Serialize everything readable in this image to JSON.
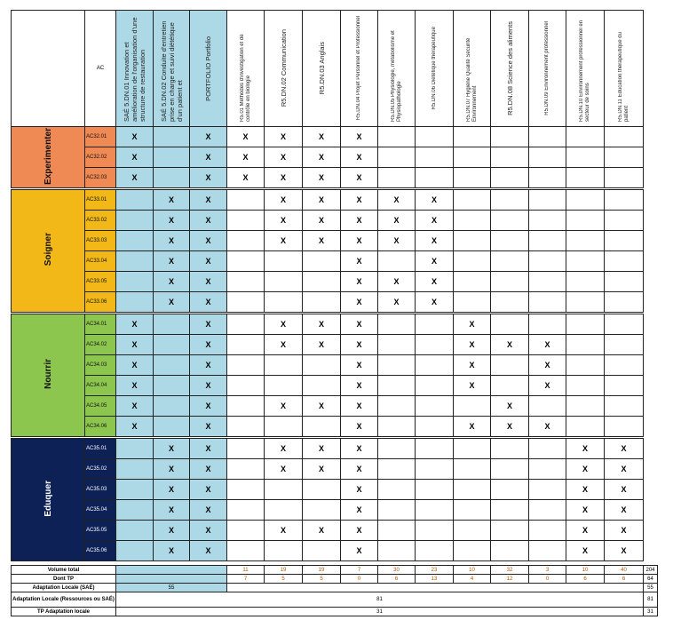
{
  "header": {
    "ac_label": "AC",
    "columns": [
      {
        "label": "SAÉ 5.DN.01 Innovation et amélioration de l'organisation d'une structure de restauration",
        "type": "sae"
      },
      {
        "label": "SAÉ 5.DN.02 Conduite d'entretien prise en charge et suivi diététique d'un patient et",
        "type": "sae"
      },
      {
        "label": "PORTFOLIO Portfolio",
        "type": "sae"
      },
      {
        "label": "R5.01 Méthodes d'investigation et de contrôle en biologie",
        "type": "res"
      },
      {
        "label": "R5.DN.02 Communication",
        "type": "res"
      },
      {
        "label": "R5.DN.03 Anglais",
        "type": "res"
      },
      {
        "label": "R5.DN.04 Projet Personnel et Professionnel",
        "type": "res"
      },
      {
        "label": "R5.DN.05 Physiologie, métabolisme et Physiopathologie",
        "type": "res"
      },
      {
        "label": "R5.DN.06 Diététique thérapeutique",
        "type": "res"
      },
      {
        "label": "R5.DN.07 Hygiène Qualité Sécurité Environnement",
        "type": "res"
      },
      {
        "label": "R5.DN.08 Science des aliments",
        "type": "res"
      },
      {
        "label": "R5.DN.09 Environnement professionnel",
        "type": "res"
      },
      {
        "label": "R5.DN.10 Environnement professionnel en secteur de soins",
        "type": "res"
      },
      {
        "label": "R5.DN.11 Education thérapeutique du patient",
        "type": "res"
      }
    ]
  },
  "colors": {
    "blue": "#add8e6"
  },
  "groups": [
    {
      "name": "Experimenter",
      "color": "#ef8a54",
      "text_color": "#111",
      "rows": [
        {
          "ac": "AC32.01",
          "cells": [
            "X",
            "",
            "X",
            "X",
            "X",
            "X",
            "X",
            "",
            "",
            "",
            "",
            "",
            "",
            ""
          ]
        },
        {
          "ac": "AC32.02",
          "cells": [
            "X",
            "",
            "X",
            "X",
            "X",
            "X",
            "X",
            "",
            "",
            "",
            "",
            "",
            "",
            ""
          ]
        },
        {
          "ac": "AC32.03",
          "cells": [
            "X",
            "",
            "X",
            "X",
            "X",
            "X",
            "X",
            "",
            "",
            "",
            "",
            "",
            "",
            ""
          ]
        }
      ]
    },
    {
      "name": "Soigner",
      "color": "#f2b817",
      "text_color": "#111",
      "rows": [
        {
          "ac": "AC33.01",
          "cells": [
            "",
            "X",
            "X",
            "",
            "X",
            "X",
            "X",
            "X",
            "X",
            "",
            "",
            "",
            "",
            ""
          ]
        },
        {
          "ac": "AC33.02",
          "cells": [
            "",
            "X",
            "X",
            "",
            "X",
            "X",
            "X",
            "X",
            "X",
            "",
            "",
            "",
            "",
            ""
          ]
        },
        {
          "ac": "AC33.03",
          "cells": [
            "",
            "X",
            "X",
            "",
            "X",
            "X",
            "X",
            "X",
            "X",
            "",
            "",
            "",
            "",
            ""
          ]
        },
        {
          "ac": "AC33.04",
          "cells": [
            "",
            "X",
            "X",
            "",
            "",
            "",
            "X",
            "",
            "X",
            "",
            "",
            "",
            "",
            ""
          ]
        },
        {
          "ac": "AC33.05",
          "cells": [
            "",
            "X",
            "X",
            "",
            "",
            "",
            "X",
            "X",
            "X",
            "",
            "",
            "",
            "",
            ""
          ]
        },
        {
          "ac": "AC33.06",
          "cells": [
            "",
            "X",
            "X",
            "",
            "",
            "",
            "X",
            "X",
            "X",
            "",
            "",
            "",
            "",
            ""
          ]
        }
      ]
    },
    {
      "name": "Nourrir",
      "color": "#8dc64f",
      "text_color": "#111",
      "rows": [
        {
          "ac": "AC34.01",
          "cells": [
            "X",
            "",
            "X",
            "",
            "X",
            "X",
            "X",
            "",
            "",
            "X",
            "",
            "",
            "",
            ""
          ]
        },
        {
          "ac": "AC34.02",
          "cells": [
            "X",
            "",
            "X",
            "",
            "X",
            "X",
            "X",
            "",
            "",
            "X",
            "X",
            "X",
            "",
            ""
          ]
        },
        {
          "ac": "AC34.03",
          "cells": [
            "X",
            "",
            "X",
            "",
            "",
            "",
            "X",
            "",
            "",
            "X",
            "",
            "X",
            "",
            ""
          ]
        },
        {
          "ac": "AC34.04",
          "cells": [
            "X",
            "",
            "X",
            "",
            "",
            "",
            "X",
            "",
            "",
            "X",
            "",
            "X",
            "",
            ""
          ]
        },
        {
          "ac": "AC34.05",
          "cells": [
            "X",
            "",
            "X",
            "",
            "X",
            "X",
            "X",
            "",
            "",
            "",
            "X",
            "",
            "",
            ""
          ]
        },
        {
          "ac": "AC34.06",
          "cells": [
            "X",
            "",
            "X",
            "",
            "",
            "",
            "X",
            "",
            "",
            "X",
            "X",
            "X",
            "",
            ""
          ]
        }
      ]
    },
    {
      "name": "Eduquer",
      "color": "#0d2157",
      "text_color": "#fff",
      "rows": [
        {
          "ac": "AC35.01",
          "cells": [
            "",
            "X",
            "X",
            "",
            "X",
            "X",
            "X",
            "",
            "",
            "",
            "",
            "",
            "X",
            "X"
          ]
        },
        {
          "ac": "AC35.02",
          "cells": [
            "",
            "X",
            "X",
            "",
            "X",
            "X",
            "X",
            "",
            "",
            "",
            "",
            "",
            "X",
            "X"
          ]
        },
        {
          "ac": "AC35.03",
          "cells": [
            "",
            "X",
            "X",
            "",
            "",
            "",
            "X",
            "",
            "",
            "",
            "",
            "",
            "X",
            "X"
          ]
        },
        {
          "ac": "AC35.04",
          "cells": [
            "",
            "X",
            "X",
            "",
            "",
            "",
            "X",
            "",
            "",
            "",
            "",
            "",
            "X",
            "X"
          ]
        },
        {
          "ac": "AC35.05",
          "cells": [
            "",
            "X",
            "X",
            "",
            "X",
            "X",
            "X",
            "",
            "",
            "",
            "",
            "",
            "X",
            "X"
          ]
        },
        {
          "ac": "AC35.06",
          "cells": [
            "",
            "X",
            "X",
            "",
            "",
            "",
            "X",
            "",
            "",
            "",
            "",
            "",
            "X",
            "X"
          ]
        }
      ]
    }
  ],
  "totals": {
    "volume_total": {
      "label": "Volume total",
      "values": [
        "11",
        "19",
        "19",
        "7",
        "30",
        "23",
        "10",
        "32",
        "3",
        "10",
        "40"
      ],
      "total": "204"
    },
    "dont_tp": {
      "label": "Dont TP",
      "values": [
        "7",
        "5",
        "5",
        "0",
        "6",
        "13",
        "4",
        "12",
        "0",
        "6",
        "6"
      ],
      "total": "64"
    },
    "adaptation_sae": {
      "label": "Adaptation Locale (SAÉ)",
      "value": "55",
      "total": "55"
    },
    "adaptation_locale": {
      "label": "Adaptation Locale (Ressources ou SAÉ)",
      "value": "81",
      "total": "81"
    },
    "tp_adaptation": {
      "label": "TP Adaptation locale",
      "value": "31",
      "total": "31"
    }
  }
}
